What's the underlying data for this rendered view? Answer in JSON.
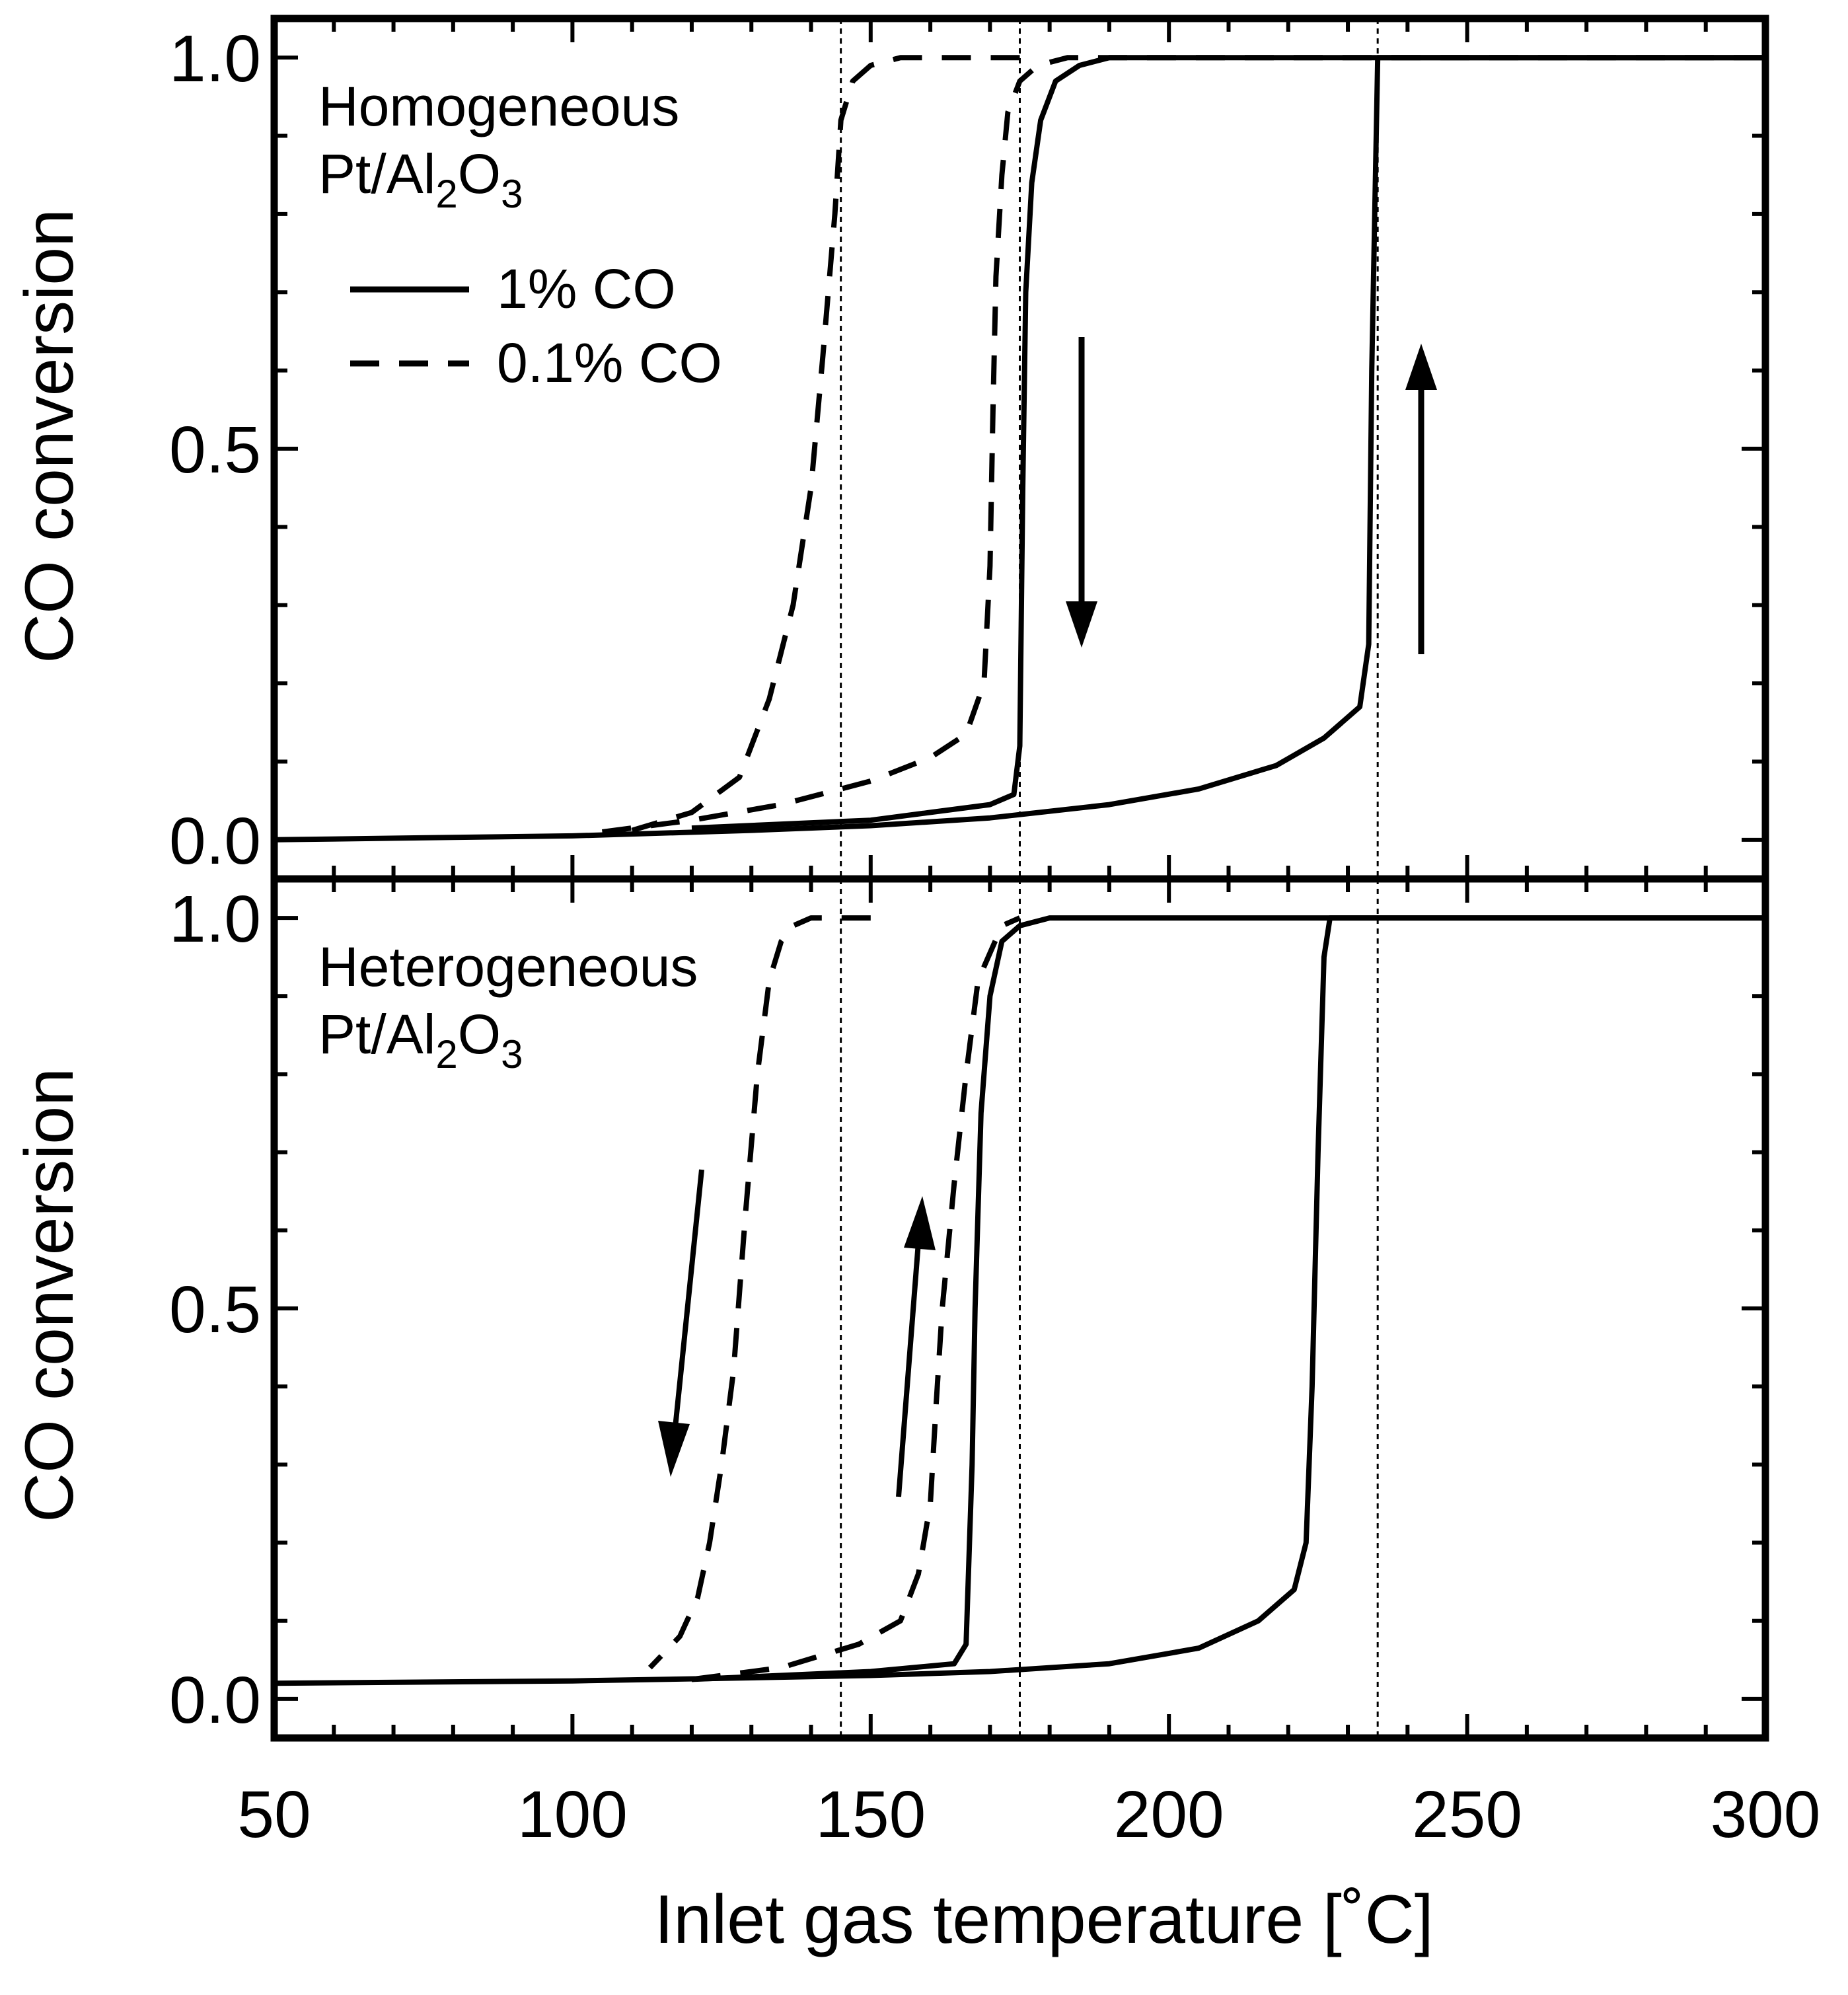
{
  "chart_data": [
    {
      "type": "line",
      "panel": "top",
      "annotation": {
        "line1": "Homogeneous",
        "pt": "Pt/Al",
        "sub2": "2",
        "o": "O",
        "sub3": "3"
      },
      "xlabel": "Inlet gas temperature [˚C]",
      "ylabel": "CO conversion",
      "xlim": [
        50,
        300
      ],
      "ylim": [
        -0.05,
        1.05
      ],
      "x_ticks": [
        "50",
        "100",
        "150",
        "200",
        "250",
        "300"
      ],
      "y_ticks": [
        "0.0",
        "0.5",
        "1.0"
      ],
      "reference_lines_x": [
        145,
        175,
        235
      ],
      "legend": [
        {
          "name": "1% CO",
          "style": "solid"
        },
        {
          "name": "0.1% CO",
          "style": "dashed"
        }
      ],
      "series": [
        {
          "name": "1% CO (ignition)",
          "style": "solid",
          "x": [
            50,
            100,
            130,
            150,
            170,
            190,
            205,
            218,
            226,
            232,
            233.5,
            234,
            235,
            300
          ],
          "y": [
            0.0,
            0.005,
            0.012,
            0.018,
            0.028,
            0.045,
            0.065,
            0.095,
            0.13,
            0.17,
            0.25,
            0.6,
            1.0,
            1.0
          ]
        },
        {
          "name": "1% CO (extinction)",
          "style": "solid",
          "x": [
            300,
            200,
            190,
            185,
            181,
            178.5,
            177,
            176,
            175.5,
            175,
            174,
            170,
            160,
            150,
            120
          ],
          "y": [
            1.0,
            1.0,
            1.0,
            0.99,
            0.97,
            0.92,
            0.84,
            0.7,
            0.45,
            0.12,
            0.058,
            0.045,
            0.035,
            0.025,
            0.015
          ]
        },
        {
          "name": "0.1% CO (ignition)",
          "style": "dashed",
          "x": [
            105,
            120,
            135,
            150,
            160,
            166,
            169,
            170,
            170.5,
            171,
            172,
            173,
            175,
            178,
            183,
            190,
            300
          ],
          "y": [
            0.01,
            0.025,
            0.045,
            0.075,
            0.105,
            0.135,
            0.2,
            0.35,
            0.55,
            0.72,
            0.85,
            0.93,
            0.97,
            0.99,
            1.0,
            1.0,
            1.0
          ]
        },
        {
          "name": "0.1% CO (extinction)",
          "style": "dashed",
          "x": [
            175,
            155,
            150,
            147,
            145,
            144,
            142,
            140,
            137,
            133,
            128,
            120,
            110
          ],
          "y": [
            1.0,
            1.0,
            0.99,
            0.97,
            0.92,
            0.8,
            0.62,
            0.45,
            0.3,
            0.18,
            0.08,
            0.035,
            0.012
          ]
        }
      ]
    },
    {
      "type": "line",
      "panel": "bottom",
      "annotation": {
        "line1": "Heterogeneous",
        "pt": "Pt/Al",
        "sub2": "2",
        "o": "O",
        "sub3": "3"
      },
      "xlabel": "Inlet gas temperature [˚C]",
      "ylabel": "CO conversion",
      "xlim": [
        50,
        300
      ],
      "ylim": [
        -0.05,
        1.05
      ],
      "x_ticks": [
        "50",
        "100",
        "150",
        "200",
        "250",
        "300"
      ],
      "y_ticks": [
        "0.0",
        "0.5",
        "1.0"
      ],
      "reference_lines_x": [
        145,
        175,
        235
      ],
      "series": [
        {
          "name": "1% CO (ignition)",
          "style": "solid",
          "x": [
            50,
            100,
            130,
            150,
            170,
            190,
            205,
            215,
            221,
            223,
            224,
            225,
            226,
            227,
            300
          ],
          "y": [
            0.02,
            0.023,
            0.027,
            0.03,
            0.035,
            0.045,
            0.065,
            0.1,
            0.14,
            0.2,
            0.4,
            0.7,
            0.95,
            1.0,
            1.0
          ]
        },
        {
          "name": "1% CO (extinction)",
          "style": "solid",
          "x": [
            300,
            190,
            180,
            175,
            172,
            170,
            168.5,
            167.5,
            167,
            166,
            164,
            150,
            120
          ],
          "y": [
            1.0,
            1.0,
            1.0,
            0.99,
            0.97,
            0.9,
            0.75,
            0.5,
            0.3,
            0.07,
            0.045,
            0.035,
            0.025
          ]
        },
        {
          "name": "0.1% CO (ignition)",
          "style": "dashed",
          "x": [
            120,
            135,
            148,
            155,
            158,
            160,
            161,
            162,
            164,
            166,
            168,
            172,
            175
          ],
          "y": [
            0.025,
            0.04,
            0.07,
            0.1,
            0.16,
            0.25,
            0.38,
            0.5,
            0.66,
            0.8,
            0.92,
            0.99,
            1.0
          ]
        },
        {
          "name": "0.1% CO (extinction)",
          "style": "dashed",
          "x": [
            150,
            140,
            137,
            135,
            133,
            131,
            129,
            127,
            125,
            123,
            121,
            118,
            113
          ],
          "y": [
            1.0,
            1.0,
            0.99,
            0.97,
            0.92,
            0.8,
            0.62,
            0.42,
            0.3,
            0.2,
            0.13,
            0.08,
            0.04
          ]
        }
      ]
    }
  ]
}
